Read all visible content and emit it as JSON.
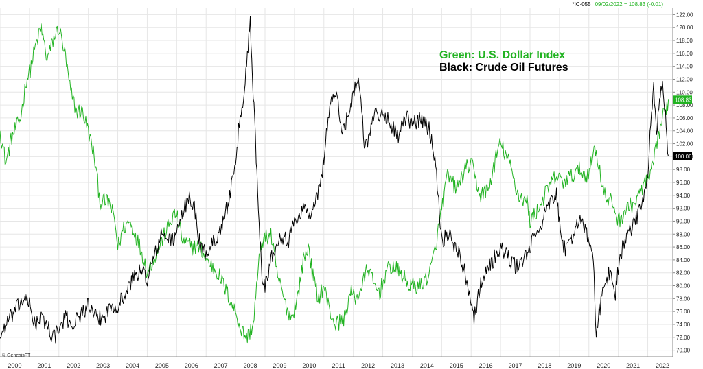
{
  "header": {
    "symbol": "*IC-055",
    "quote": "09/02/2022 = 108.83 (-0.01)"
  },
  "credit": "© GenesisFT",
  "chart_data": {
    "type": "line",
    "title": "",
    "xlabel": "",
    "ylabel": "",
    "xlim": [
      2000.0,
      2022.85
    ],
    "ylim": [
      69,
      123
    ],
    "grid": true,
    "x_ticks": [
      "2000",
      "2001",
      "2002",
      "2003",
      "2004",
      "2005",
      "2006",
      "2007",
      "2008",
      "2009",
      "2010",
      "2011",
      "2012",
      "2013",
      "2014",
      "2015",
      "2016",
      "2017",
      "2018",
      "2019",
      "2020",
      "2021",
      "2022"
    ],
    "y_ticks": [
      70,
      72,
      74,
      76,
      78,
      80,
      82,
      84,
      86,
      88,
      90,
      92,
      94,
      96,
      98,
      100,
      102,
      104,
      106,
      108,
      110,
      112,
      114,
      116,
      118,
      120,
      122
    ],
    "annotations": [
      {
        "text": "Green: U.S. Dollar Index",
        "color": "#22b322"
      },
      {
        "text": "Black: Crude Oil Futures",
        "color": "#000000"
      }
    ],
    "series": [
      {
        "name": "U.S. Dollar Index",
        "color": "#22b322",
        "last_label": "108.83",
        "points": [
          [
            2000.0,
            104
          ],
          [
            2000.2,
            99
          ],
          [
            2000.4,
            103
          ],
          [
            2000.7,
            106
          ],
          [
            2000.9,
            112
          ],
          [
            2001.0,
            113
          ],
          [
            2001.2,
            117
          ],
          [
            2001.4,
            120
          ],
          [
            2001.6,
            115
          ],
          [
            2001.8,
            118
          ],
          [
            2002.0,
            120
          ],
          [
            2002.2,
            116
          ],
          [
            2002.4,
            110
          ],
          [
            2002.6,
            107
          ],
          [
            2002.8,
            107
          ],
          [
            2003.0,
            104
          ],
          [
            2003.2,
            100
          ],
          [
            2003.4,
            93
          ],
          [
            2003.7,
            93
          ],
          [
            2003.9,
            90
          ],
          [
            2004.0,
            86
          ],
          [
            2004.2,
            89
          ],
          [
            2004.4,
            90
          ],
          [
            2004.6,
            88
          ],
          [
            2004.9,
            84
          ],
          [
            2005.0,
            82
          ],
          [
            2005.3,
            85
          ],
          [
            2005.6,
            88
          ],
          [
            2005.9,
            91
          ],
          [
            2006.0,
            91
          ],
          [
            2006.2,
            87
          ],
          [
            2006.5,
            86
          ],
          [
            2006.8,
            86
          ],
          [
            2007.0,
            84
          ],
          [
            2007.4,
            82
          ],
          [
            2007.7,
            79
          ],
          [
            2008.0,
            76
          ],
          [
            2008.2,
            73
          ],
          [
            2008.4,
            72
          ],
          [
            2008.6,
            74
          ],
          [
            2008.8,
            84
          ],
          [
            2008.9,
            87
          ],
          [
            2009.2,
            88
          ],
          [
            2009.4,
            82
          ],
          [
            2009.7,
            77
          ],
          [
            2009.9,
            75
          ],
          [
            2010.1,
            78
          ],
          [
            2010.3,
            84
          ],
          [
            2010.5,
            86
          ],
          [
            2010.6,
            82
          ],
          [
            2010.8,
            78
          ],
          [
            2011.0,
            80
          ],
          [
            2011.2,
            76
          ],
          [
            2011.4,
            74
          ],
          [
            2011.7,
            75
          ],
          [
            2011.9,
            79
          ],
          [
            2012.1,
            78
          ],
          [
            2012.3,
            80
          ],
          [
            2012.5,
            83
          ],
          [
            2012.7,
            80
          ],
          [
            2012.9,
            79
          ],
          [
            2013.1,
            82
          ],
          [
            2013.3,
            83
          ],
          [
            2013.6,
            82
          ],
          [
            2013.9,
            80
          ],
          [
            2014.0,
            80
          ],
          [
            2014.3,
            80
          ],
          [
            2014.6,
            82
          ],
          [
            2014.8,
            86
          ],
          [
            2015.0,
            92
          ],
          [
            2015.2,
            97
          ],
          [
            2015.5,
            95
          ],
          [
            2015.8,
            98
          ],
          [
            2016.0,
            99
          ],
          [
            2016.3,
            94
          ],
          [
            2016.6,
            95
          ],
          [
            2016.9,
            101
          ],
          [
            2017.0,
            102
          ],
          [
            2017.3,
            99
          ],
          [
            2017.6,
            94
          ],
          [
            2017.9,
            93
          ],
          [
            2018.0,
            90
          ],
          [
            2018.3,
            92
          ],
          [
            2018.6,
            95
          ],
          [
            2018.9,
            97
          ],
          [
            2019.1,
            96
          ],
          [
            2019.4,
            97
          ],
          [
            2019.7,
            98
          ],
          [
            2019.9,
            97
          ],
          [
            2020.1,
            99
          ],
          [
            2020.2,
            102
          ],
          [
            2020.4,
            97
          ],
          [
            2020.6,
            93
          ],
          [
            2020.8,
            93
          ],
          [
            2021.0,
            90
          ],
          [
            2021.3,
            92
          ],
          [
            2021.6,
            93
          ],
          [
            2021.9,
            96
          ],
          [
            2022.0,
            96
          ],
          [
            2022.2,
            99
          ],
          [
            2022.4,
            104
          ],
          [
            2022.5,
            106
          ],
          [
            2022.6,
            107
          ],
          [
            2022.7,
            108.83
          ]
        ]
      },
      {
        "name": "Crude Oil Futures",
        "color": "#000000",
        "last_label": "100.06",
        "points": [
          [
            2000.0,
            72
          ],
          [
            2000.2,
            74
          ],
          [
            2000.5,
            76
          ],
          [
            2000.8,
            78
          ],
          [
            2001.0,
            77
          ],
          [
            2001.2,
            74
          ],
          [
            2001.4,
            75
          ],
          [
            2001.6,
            74
          ],
          [
            2001.8,
            72
          ],
          [
            2002.0,
            73
          ],
          [
            2002.2,
            75
          ],
          [
            2002.5,
            74
          ],
          [
            2002.8,
            76
          ],
          [
            2003.0,
            77
          ],
          [
            2003.2,
            75
          ],
          [
            2003.5,
            75
          ],
          [
            2003.8,
            77
          ],
          [
            2004.0,
            77
          ],
          [
            2004.3,
            79
          ],
          [
            2004.6,
            82
          ],
          [
            2004.9,
            82
          ],
          [
            2005.0,
            81
          ],
          [
            2005.2,
            84
          ],
          [
            2005.5,
            88
          ],
          [
            2005.8,
            87
          ],
          [
            2006.0,
            88
          ],
          [
            2006.2,
            91
          ],
          [
            2006.4,
            94
          ],
          [
            2006.6,
            92
          ],
          [
            2006.8,
            86
          ],
          [
            2007.0,
            85
          ],
          [
            2007.3,
            87
          ],
          [
            2007.6,
            90
          ],
          [
            2007.8,
            94
          ],
          [
            2008.0,
            98
          ],
          [
            2008.1,
            104
          ],
          [
            2008.3,
            110
          ],
          [
            2008.4,
            116
          ],
          [
            2008.5,
            121
          ],
          [
            2008.6,
            110
          ],
          [
            2008.7,
            100
          ],
          [
            2008.8,
            90
          ],
          [
            2008.9,
            82
          ],
          [
            2009.0,
            80
          ],
          [
            2009.2,
            84
          ],
          [
            2009.5,
            88
          ],
          [
            2009.8,
            87
          ],
          [
            2010.0,
            90
          ],
          [
            2010.3,
            92
          ],
          [
            2010.6,
            91
          ],
          [
            2010.9,
            96
          ],
          [
            2011.0,
            100
          ],
          [
            2011.2,
            108
          ],
          [
            2011.4,
            110
          ],
          [
            2011.6,
            104
          ],
          [
            2011.8,
            106
          ],
          [
            2012.0,
            110
          ],
          [
            2012.2,
            112
          ],
          [
            2012.4,
            101
          ],
          [
            2012.6,
            105
          ],
          [
            2012.8,
            107
          ],
          [
            2013.0,
            106
          ],
          [
            2013.2,
            106
          ],
          [
            2013.5,
            103
          ],
          [
            2013.8,
            106
          ],
          [
            2014.0,
            105
          ],
          [
            2014.3,
            106
          ],
          [
            2014.6,
            104
          ],
          [
            2014.8,
            99
          ],
          [
            2014.9,
            93
          ],
          [
            2015.0,
            87
          ],
          [
            2015.2,
            88
          ],
          [
            2015.5,
            86
          ],
          [
            2015.8,
            82
          ],
          [
            2016.0,
            78
          ],
          [
            2016.1,
            75
          ],
          [
            2016.3,
            80
          ],
          [
            2016.6,
            83
          ],
          [
            2016.9,
            85
          ],
          [
            2017.0,
            86
          ],
          [
            2017.3,
            84
          ],
          [
            2017.5,
            83
          ],
          [
            2017.8,
            84
          ],
          [
            2018.0,
            86
          ],
          [
            2018.3,
            89
          ],
          [
            2018.6,
            92
          ],
          [
            2018.9,
            94
          ],
          [
            2019.0,
            90
          ],
          [
            2019.2,
            85
          ],
          [
            2019.4,
            87
          ],
          [
            2019.7,
            91
          ],
          [
            2019.9,
            88
          ],
          [
            2020.0,
            87
          ],
          [
            2020.15,
            84
          ],
          [
            2020.2,
            79
          ],
          [
            2020.25,
            71
          ],
          [
            2020.35,
            76
          ],
          [
            2020.5,
            80
          ],
          [
            2020.7,
            82
          ],
          [
            2020.9,
            79
          ],
          [
            2021.0,
            83
          ],
          [
            2021.2,
            87
          ],
          [
            2021.5,
            89
          ],
          [
            2021.8,
            93
          ],
          [
            2022.0,
            96
          ],
          [
            2022.1,
            105
          ],
          [
            2022.2,
            111
          ],
          [
            2022.3,
            104
          ],
          [
            2022.4,
            108
          ],
          [
            2022.5,
            112
          ],
          [
            2022.6,
            106
          ],
          [
            2022.7,
            100.06
          ]
        ]
      }
    ]
  }
}
